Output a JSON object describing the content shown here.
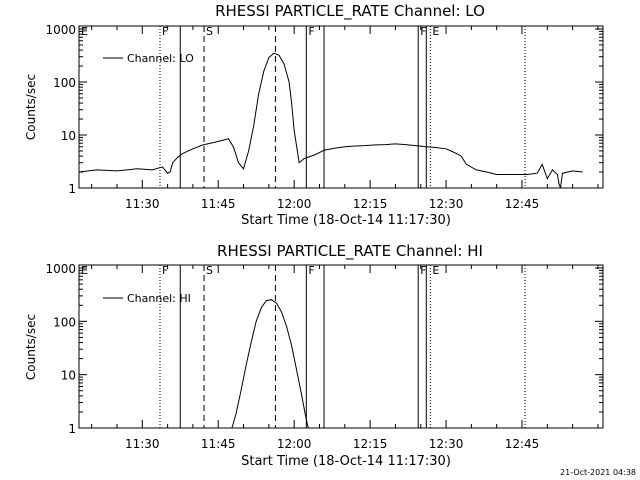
{
  "chart_data": [
    {
      "type": "line",
      "title": "RHESSI PARTICLE_RATE Channel: LO",
      "xlabel": "Start Time (18-Oct-14 11:17:30)",
      "ylabel": "Counts/sec",
      "y_scale": "log",
      "ylim": [
        1,
        1000
      ],
      "y_ticks": [
        1,
        10,
        100,
        1000
      ],
      "y_tick_labels": [
        "1",
        "10",
        "100",
        "1000"
      ],
      "x_tick_labels": [
        "11:30",
        "11:45",
        "12:00",
        "12:15",
        "12:30",
        "12:45"
      ],
      "x_ticks_min": [
        690,
        705,
        720,
        735,
        750,
        765
      ],
      "xlim_min": [
        677.5,
        781
      ],
      "grid": false,
      "legend_position": "top-left",
      "series": [
        {
          "name": "Channel: LO",
          "x_min": [
            677.5,
            681,
            685,
            689,
            692,
            694,
            695,
            695.5,
            696,
            697,
            698,
            700,
            702,
            704,
            706,
            707,
            708,
            709,
            710,
            711,
            712,
            713,
            714,
            715,
            716,
            717,
            718,
            719,
            719.5,
            720,
            721,
            722,
            724,
            726,
            728,
            730,
            732,
            734,
            736,
            738,
            740,
            742,
            744,
            746,
            748,
            750,
            751,
            752,
            753,
            754,
            756,
            758,
            760,
            762,
            764,
            766,
            768,
            769,
            770,
            771,
            772,
            772.3,
            772.6,
            773,
            775,
            777
          ],
          "values": [
            2,
            2.2,
            2.1,
            2.3,
            2.2,
            2.5,
            1.9,
            2,
            3,
            3.8,
            4.5,
            5.5,
            6.5,
            7.2,
            8,
            8.5,
            6,
            3,
            2.3,
            5,
            15,
            60,
            160,
            290,
            350,
            320,
            220,
            100,
            40,
            12,
            3,
            3.6,
            4.2,
            5.2,
            5.6,
            6,
            6.2,
            6.3,
            6.5,
            6.6,
            6.8,
            6.6,
            6.3,
            6,
            5.8,
            5.5,
            5,
            4.5,
            4,
            2.8,
            2.2,
            2,
            1.8,
            1.8,
            1.8,
            1.8,
            1.9,
            2.8,
            1.5,
            2.2,
            1.8,
            1.2,
            1.0,
            1.9,
            2.1,
            2.0
          ]
        }
      ],
      "markers": [
        {
          "label": "F",
          "x_min": 693.5,
          "style": "dotted"
        },
        {
          "label": "",
          "x_min": 697.5,
          "style": "solid"
        },
        {
          "label": "S",
          "x_min": 702.2,
          "style": "dashed"
        },
        {
          "label": "",
          "x_min": 716.3,
          "style": "dashed"
        },
        {
          "label": "F",
          "x_min": 722.4,
          "style": "solid"
        },
        {
          "label": "",
          "x_min": 725.9,
          "style": "solid"
        },
        {
          "label": "F",
          "x_min": 744.5,
          "style": "solid"
        },
        {
          "label": "",
          "x_min": 746.1,
          "style": "solid"
        },
        {
          "label": "E",
          "x_min": 746.9,
          "style": "dotted"
        },
        {
          "label": "",
          "x_min": 765.6,
          "style": "dotted"
        }
      ],
      "top_left_marker": {
        "label": "E"
      }
    },
    {
      "type": "line",
      "title": "RHESSI PARTICLE_RATE Channel: HI",
      "xlabel": "Start Time (18-Oct-14 11:17:30)",
      "ylabel": "Counts/sec",
      "y_scale": "log",
      "ylim": [
        1,
        1000
      ],
      "y_ticks": [
        1,
        10,
        100,
        1000
      ],
      "y_tick_labels": [
        "1",
        "10",
        "100",
        "1000"
      ],
      "x_tick_labels": [
        "11:30",
        "11:45",
        "12:00",
        "12:15",
        "12:30",
        "12:45"
      ],
      "x_ticks_min": [
        690,
        705,
        720,
        735,
        750,
        765
      ],
      "xlim_min": [
        677.5,
        781
      ],
      "grid": false,
      "legend_position": "top-left",
      "series": [
        {
          "name": "Channel: HI",
          "x_min": [
            707.7,
            708.5,
            709.5,
            710.5,
            711.5,
            712.5,
            713.5,
            714.5,
            715.5,
            716.5,
            717.5,
            718.5,
            719.5,
            720.5,
            721.5,
            722.3,
            722.8
          ],
          "values": [
            1,
            1.8,
            5,
            15,
            40,
            100,
            180,
            245,
            255,
            220,
            150,
            80,
            35,
            12,
            4,
            1.6,
            1
          ]
        }
      ],
      "markers": [
        {
          "label": "F",
          "x_min": 693.5,
          "style": "dotted"
        },
        {
          "label": "",
          "x_min": 697.5,
          "style": "solid"
        },
        {
          "label": "S",
          "x_min": 702.2,
          "style": "dashed"
        },
        {
          "label": "",
          "x_min": 716.3,
          "style": "dashed"
        },
        {
          "label": "F",
          "x_min": 722.4,
          "style": "solid"
        },
        {
          "label": "",
          "x_min": 725.9,
          "style": "solid"
        },
        {
          "label": "F",
          "x_min": 744.5,
          "style": "solid"
        },
        {
          "label": "",
          "x_min": 746.1,
          "style": "solid"
        },
        {
          "label": "E",
          "x_min": 746.9,
          "style": "dotted"
        },
        {
          "label": "",
          "x_min": 765.6,
          "style": "dotted"
        }
      ],
      "top_left_marker": {
        "label": "E"
      }
    }
  ],
  "footer": {
    "timestamp": "21-Oct-2021 04:38"
  }
}
